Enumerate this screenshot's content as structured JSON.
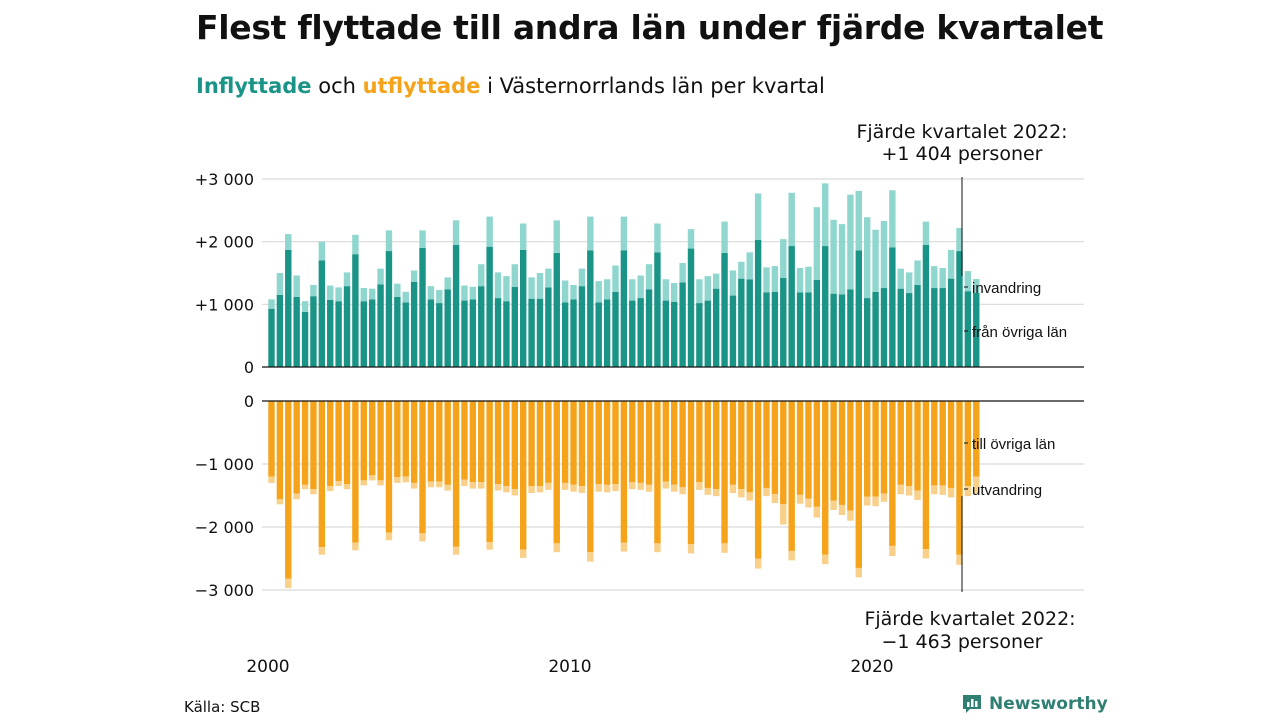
{
  "title": "Flest flyttade till andra län under fjärde kvartalet",
  "subtitle": {
    "part1": "Inflyttade",
    "part2": " och ",
    "part3": "utflyttade",
    "part4": " i Västernorrlands län per kvartal"
  },
  "source": "Källa: SCB",
  "logo": {
    "text": "Newsworthy",
    "icon": "newsworthy-logo-icon"
  },
  "colors": {
    "in_domestic": "#1a9486",
    "in_immigration": "#8fd6ce",
    "out_domestic": "#f5a31a",
    "out_emigration": "#f8d08a",
    "grid": "#d9d9d9",
    "axis": "#111111"
  },
  "chart_data": {
    "type": "bar",
    "x_ticks": [
      "2000",
      "2010",
      "2020"
    ],
    "top_panel": {
      "yticks": [
        "+3 000",
        "+2 000",
        "+1 000",
        "0"
      ],
      "ylim": [
        0,
        3000
      ],
      "stacked": true,
      "callout": {
        "line1": "Fjärde kvartalet 2022:",
        "line2": "+1 404 personer"
      },
      "legend": [
        "invandring",
        "från övriga län"
      ],
      "quarters_start": "2000 Q1",
      "series": [
        {
          "key": "fran_ovriga_lan",
          "label": "från övriga län",
          "values": [
            930,
            1150,
            1870,
            1120,
            880,
            1130,
            1700,
            1070,
            1050,
            1290,
            1800,
            1050,
            1080,
            1320,
            1850,
            1120,
            1030,
            1360,
            1900,
            1080,
            1020,
            1240,
            1950,
            1060,
            1080,
            1290,
            1920,
            1100,
            1050,
            1280,
            1870,
            1090,
            1090,
            1270,
            1820,
            1030,
            1080,
            1290,
            1860,
            1030,
            1080,
            1200,
            1860,
            1060,
            1100,
            1240,
            1830,
            1060,
            1040,
            1350,
            1890,
            1020,
            1060,
            1250,
            1820,
            1140,
            1410,
            1400,
            2030,
            1190,
            1200,
            1420,
            1930,
            1190,
            1190,
            1390,
            1930,
            1170,
            1160,
            1240,
            1860,
            1100,
            1200,
            1260,
            1910,
            1250,
            1180,
            1310,
            1950,
            1260,
            1260,
            1410,
            1850,
            1210,
            1183
          ]
        },
        {
          "key": "invandring",
          "label": "invandring",
          "values": [
            150,
            350,
            250,
            340,
            170,
            180,
            300,
            230,
            220,
            220,
            310,
            210,
            170,
            250,
            330,
            210,
            170,
            180,
            280,
            210,
            210,
            190,
            390,
            240,
            200,
            350,
            480,
            410,
            400,
            360,
            420,
            340,
            410,
            300,
            520,
            350,
            230,
            280,
            540,
            340,
            320,
            420,
            540,
            340,
            360,
            400,
            460,
            340,
            300,
            310,
            310,
            380,
            390,
            240,
            500,
            400,
            270,
            430,
            740,
            400,
            410,
            620,
            850,
            390,
            410,
            1160,
            1000,
            1180,
            1120,
            1510,
            950,
            1290,
            990,
            1070,
            910,
            320,
            330,
            390,
            370,
            350,
            320,
            460,
            370,
            320,
            221
          ]
        }
      ]
    },
    "bottom_panel": {
      "yticks": [
        "0",
        "−1 000",
        "−2 000",
        "−3 000"
      ],
      "ylim": [
        -3000,
        0
      ],
      "stacked": true,
      "callout": {
        "line1": "Fjärde kvartalet 2022:",
        "line2": "−1 463 personer"
      },
      "legend": [
        "till övriga län",
        "utvandring"
      ],
      "quarters_start": "2000 Q1",
      "series": [
        {
          "key": "till_ovriga_lan",
          "label": "till övriga län",
          "values": [
            -1200,
            -1560,
            -2820,
            -1470,
            -1330,
            -1400,
            -2320,
            -1350,
            -1270,
            -1320,
            -2250,
            -1260,
            -1180,
            -1260,
            -2090,
            -1210,
            -1200,
            -1300,
            -2100,
            -1280,
            -1280,
            -1330,
            -2310,
            -1250,
            -1290,
            -1290,
            -2240,
            -1320,
            -1350,
            -1400,
            -2360,
            -1350,
            -1350,
            -1300,
            -2260,
            -1300,
            -1330,
            -1350,
            -2400,
            -1320,
            -1330,
            -1320,
            -2250,
            -1290,
            -1300,
            -1330,
            -2260,
            -1280,
            -1330,
            -1370,
            -2270,
            -1290,
            -1380,
            -1400,
            -2260,
            -1330,
            -1400,
            -1450,
            -2500,
            -1380,
            -1480,
            -1640,
            -2380,
            -1490,
            -1550,
            -1680,
            -2440,
            -1580,
            -1650,
            -1740,
            -2650,
            -1520,
            -1520,
            -1470,
            -2300,
            -1330,
            -1350,
            -1420,
            -2350,
            -1340,
            -1340,
            -1380,
            -2440,
            -1350,
            -1200
          ]
        },
        {
          "key": "utvandring",
          "label": "utvandring",
          "values": [
            -100,
            -80,
            -150,
            -90,
            -70,
            -80,
            -120,
            -80,
            -80,
            -80,
            -120,
            -80,
            -80,
            -80,
            -120,
            -90,
            -90,
            -90,
            -130,
            -90,
            -90,
            -90,
            -130,
            -100,
            -100,
            -100,
            -120,
            -100,
            -100,
            -100,
            -130,
            -110,
            -100,
            -110,
            -140,
            -110,
            -110,
            -110,
            -150,
            -120,
            -120,
            -110,
            -140,
            -110,
            -110,
            -110,
            -140,
            -110,
            -110,
            -110,
            -150,
            -120,
            -110,
            -110,
            -150,
            -130,
            -130,
            -130,
            -160,
            -130,
            -140,
            -320,
            -150,
            -140,
            -140,
            -170,
            -150,
            -150,
            -160,
            -160,
            -150,
            -140,
            -150,
            -130,
            -160,
            -150,
            -150,
            -150,
            -150,
            -140,
            -150,
            -150,
            -160,
            -160,
            -263
          ]
        }
      ]
    }
  }
}
